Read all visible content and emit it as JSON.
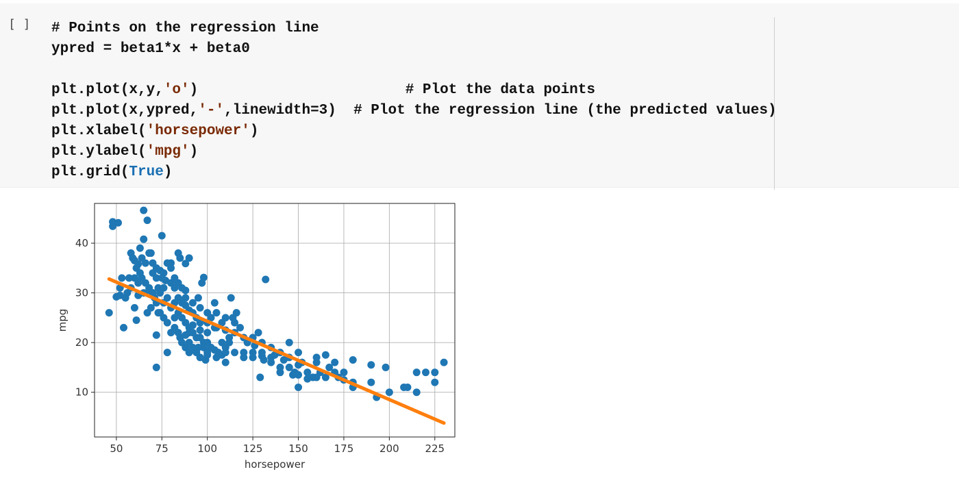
{
  "cell": {
    "run_indicator": "[ ]",
    "code_lines": [
      [
        {
          "t": "# Points on the regression line",
          "c": ""
        }
      ],
      [
        {
          "t": "ypred = beta1*x + beta0",
          "c": ""
        }
      ],
      [
        {
          "t": "",
          "c": ""
        }
      ],
      [
        {
          "t": "plt.plot(x,y,",
          "c": ""
        },
        {
          "t": "'o'",
          "c": "str"
        },
        {
          "t": ")                        # Plot the data points",
          "c": ""
        }
      ],
      [
        {
          "t": "plt.plot(x,ypred,",
          "c": ""
        },
        {
          "t": "'-'",
          "c": "str"
        },
        {
          "t": ",linewidth=3)  # Plot the regression line (the predicted values)",
          "c": ""
        }
      ],
      [
        {
          "t": "plt.xlabel(",
          "c": ""
        },
        {
          "t": "'horsepower'",
          "c": "str"
        },
        {
          "t": ")",
          "c": ""
        }
      ],
      [
        {
          "t": "plt.ylabel(",
          "c": ""
        },
        {
          "t": "'mpg'",
          "c": "str"
        },
        {
          "t": ")",
          "c": ""
        }
      ],
      [
        {
          "t": "plt.grid(",
          "c": ""
        },
        {
          "t": "True",
          "c": "kw"
        },
        {
          "t": ")",
          "c": ""
        }
      ]
    ]
  },
  "chart_data": {
    "type": "scatter",
    "xlabel": "horsepower",
    "ylabel": "mpg",
    "xlim": [
      38,
      236
    ],
    "ylim": [
      1,
      48
    ],
    "x_ticks": [
      50,
      75,
      100,
      125,
      150,
      175,
      200,
      225
    ],
    "y_ticks": [
      10,
      20,
      30,
      40
    ],
    "grid": true,
    "colors": {
      "points": "#1f77b4",
      "line": "#ff7f0e"
    },
    "points": [
      [
        46,
        26
      ],
      [
        48,
        44.3
      ],
      [
        48,
        43.4
      ],
      [
        50,
        29.2
      ],
      [
        51,
        44.1
      ],
      [
        52,
        29.5
      ],
      [
        52,
        31
      ],
      [
        53,
        33
      ],
      [
        54,
        23
      ],
      [
        60,
        27
      ],
      [
        61,
        24.5
      ],
      [
        62,
        29.5
      ],
      [
        62,
        35.8
      ],
      [
        65,
        46.6
      ],
      [
        65,
        40.8
      ],
      [
        67,
        44.6
      ],
      [
        68,
        30.5
      ],
      [
        69,
        38
      ],
      [
        70,
        36
      ],
      [
        70,
        30
      ],
      [
        72,
        15
      ],
      [
        72,
        21.5
      ],
      [
        73,
        26
      ],
      [
        75,
        41.5
      ],
      [
        76,
        28
      ],
      [
        77,
        32.5
      ],
      [
        78,
        18
      ],
      [
        80,
        36
      ],
      [
        82,
        25
      ],
      [
        84,
        38
      ],
      [
        85,
        37
      ],
      [
        88,
        30.5
      ],
      [
        88,
        35.9
      ],
      [
        90,
        37
      ],
      [
        90,
        22
      ],
      [
        92,
        23.5
      ],
      [
        95,
        29
      ],
      [
        96,
        22.5
      ],
      [
        97,
        32
      ],
      [
        98,
        33.1
      ],
      [
        99,
        16.5
      ],
      [
        100,
        22
      ],
      [
        100,
        17.5
      ],
      [
        102,
        25
      ],
      [
        104,
        28
      ],
      [
        105,
        23
      ],
      [
        108,
        17.5
      ],
      [
        110,
        19
      ],
      [
        110,
        22.5
      ],
      [
        112,
        21
      ],
      [
        113,
        29
      ],
      [
        115,
        22
      ],
      [
        116,
        26
      ],
      [
        120,
        18
      ],
      [
        122,
        20
      ],
      [
        125,
        17
      ],
      [
        126,
        19.4
      ],
      [
        129,
        13
      ],
      [
        130,
        17.3
      ],
      [
        131,
        16.5
      ],
      [
        132,
        32.7
      ],
      [
        135,
        17
      ],
      [
        137,
        17.5
      ],
      [
        140,
        14
      ],
      [
        142,
        16.5
      ],
      [
        145,
        20
      ],
      [
        147,
        13.5
      ],
      [
        148,
        14
      ],
      [
        150,
        15.5
      ],
      [
        150,
        11
      ],
      [
        152,
        16
      ],
      [
        155,
        12.7
      ],
      [
        158,
        13
      ],
      [
        160,
        16
      ],
      [
        162,
        14
      ],
      [
        165,
        17.5
      ],
      [
        167,
        15
      ],
      [
        170,
        16
      ],
      [
        172,
        13
      ],
      [
        175,
        14
      ],
      [
        180,
        16.5
      ],
      [
        180,
        11
      ],
      [
        190,
        15.5
      ],
      [
        190,
        12
      ],
      [
        193,
        9
      ],
      [
        198,
        15
      ],
      [
        200,
        10
      ],
      [
        208,
        11
      ],
      [
        210,
        11
      ],
      [
        215,
        14
      ],
      [
        215,
        10
      ],
      [
        220,
        14
      ],
      [
        225,
        14
      ],
      [
        225,
        12
      ],
      [
        230,
        16
      ],
      [
        58,
        38
      ],
      [
        60,
        36.5
      ],
      [
        63,
        39
      ],
      [
        64,
        37
      ],
      [
        66,
        36
      ],
      [
        68,
        38
      ],
      [
        70,
        34
      ],
      [
        72,
        33
      ],
      [
        74,
        30
      ],
      [
        76,
        31
      ],
      [
        78,
        29
      ],
      [
        80,
        27
      ],
      [
        82,
        28
      ],
      [
        84,
        26
      ],
      [
        86,
        25
      ],
      [
        88,
        24
      ],
      [
        90,
        23
      ],
      [
        92,
        22
      ],
      [
        94,
        21
      ],
      [
        96,
        21
      ],
      [
        98,
        20
      ],
      [
        100,
        20
      ],
      [
        102,
        19
      ],
      [
        104,
        18.5
      ],
      [
        106,
        18
      ],
      [
        108,
        20
      ],
      [
        110,
        18
      ],
      [
        112,
        20
      ],
      [
        84,
        22
      ],
      [
        86,
        20
      ],
      [
        88,
        19
      ],
      [
        90,
        18
      ],
      [
        92,
        19
      ],
      [
        94,
        18
      ],
      [
        96,
        17
      ],
      [
        98,
        19
      ],
      [
        80,
        22
      ],
      [
        82,
        23
      ],
      [
        78,
        24
      ],
      [
        76,
        25
      ],
      [
        74,
        26
      ],
      [
        72,
        28
      ],
      [
        70,
        30
      ],
      [
        68,
        31
      ],
      [
        66,
        32
      ],
      [
        64,
        33
      ],
      [
        62,
        32
      ],
      [
        60,
        33
      ],
      [
        58,
        31
      ],
      [
        56,
        30
      ],
      [
        72,
        35
      ],
      [
        74,
        34.5
      ],
      [
        76,
        34
      ],
      [
        80,
        32
      ],
      [
        82,
        31
      ],
      [
        84,
        29
      ],
      [
        86,
        28
      ],
      [
        88,
        27.5
      ],
      [
        90,
        26.5
      ],
      [
        92,
        26
      ],
      [
        94,
        25
      ],
      [
        96,
        24
      ],
      [
        100,
        24
      ],
      [
        105,
        26
      ],
      [
        110,
        25
      ],
      [
        115,
        24
      ],
      [
        120,
        21
      ],
      [
        125,
        21
      ],
      [
        130,
        18
      ],
      [
        135,
        16
      ],
      [
        140,
        15
      ],
      [
        145,
        15
      ],
      [
        150,
        13.5
      ],
      [
        155,
        14
      ],
      [
        160,
        13
      ],
      [
        165,
        13
      ],
      [
        170,
        14
      ],
      [
        175,
        12.5
      ],
      [
        180,
        12
      ],
      [
        160,
        17
      ],
      [
        150,
        18
      ],
      [
        145,
        17
      ],
      [
        140,
        18
      ],
      [
        135,
        19
      ],
      [
        130,
        20
      ],
      [
        128,
        22
      ],
      [
        118,
        23
      ],
      [
        114,
        25
      ],
      [
        108,
        24
      ],
      [
        104,
        23
      ],
      [
        100,
        26
      ],
      [
        96,
        27
      ],
      [
        92,
        28
      ],
      [
        88,
        29
      ],
      [
        86,
        31
      ],
      [
        84,
        32
      ],
      [
        82,
        33
      ],
      [
        80,
        35
      ],
      [
        78,
        36
      ],
      [
        75,
        33
      ],
      [
        73,
        31
      ],
      [
        71,
        29
      ],
      [
        69,
        27
      ],
      [
        67,
        26
      ],
      [
        65,
        30
      ],
      [
        63,
        34
      ],
      [
        61,
        35
      ],
      [
        59,
        37
      ],
      [
        57,
        33
      ],
      [
        55,
        29
      ],
      [
        90,
        20
      ],
      [
        95,
        19
      ],
      [
        100,
        18
      ],
      [
        105,
        17
      ],
      [
        110,
        16
      ],
      [
        115,
        18
      ],
      [
        120,
        17
      ],
      [
        125,
        18
      ],
      [
        85,
        21
      ],
      [
        88,
        21.5
      ]
    ],
    "line": [
      [
        46,
        32.8
      ],
      [
        230,
        3.8
      ]
    ]
  }
}
